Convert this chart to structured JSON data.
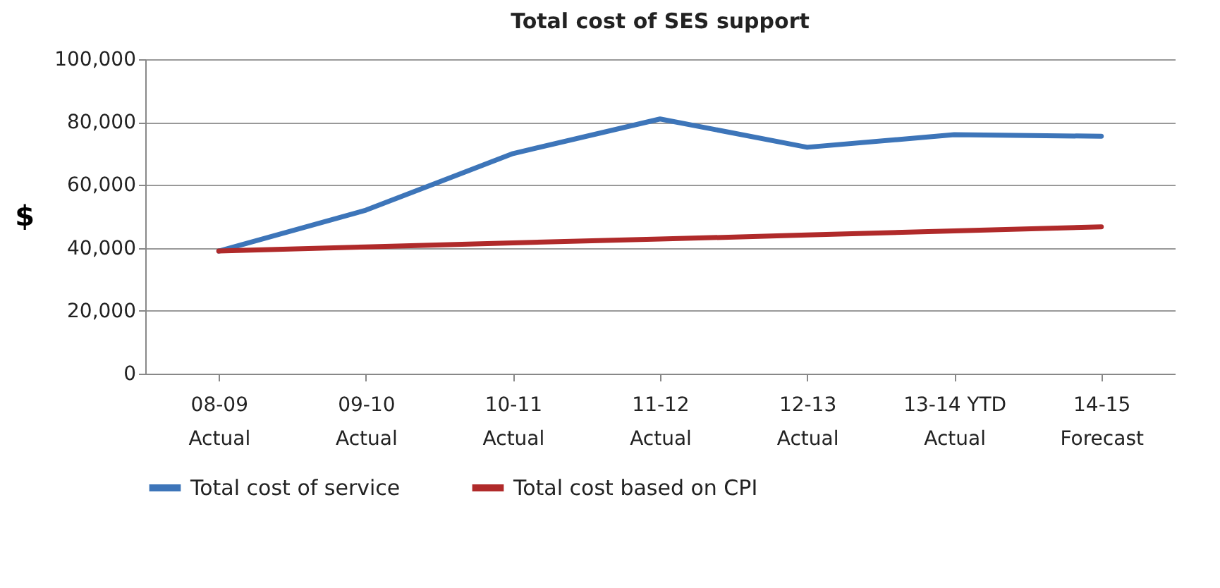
{
  "chart_data": {
    "type": "line",
    "title": "Total cost of SES support",
    "ylabel": "$",
    "categories": [
      "08-09 Actual",
      "09-10 Actual",
      "10-11 Actual",
      "11-12 Actual",
      "12-13 Actual",
      "13-14 YTD Actual",
      "14-15 Forecast"
    ],
    "series": [
      {
        "name": "Total cost of service",
        "color": "#3d75b9",
        "values": [
          39000,
          52000,
          70000,
          81000,
          72000,
          76000,
          75500
        ]
      },
      {
        "name": "Total cost based on CPI",
        "color": "#b02a2a",
        "values": [
          39000,
          40300,
          41600,
          42800,
          44100,
          45400,
          46700
        ]
      }
    ],
    "ylim": [
      0,
      100000
    ],
    "yticks": [
      0,
      {
        "value": 20000,
        "label": "20,000"
      },
      {
        "value": 40000,
        "label": "40,000"
      },
      {
        "value": 60000,
        "label": "60,000"
      },
      {
        "value": 80000,
        "label": "80,000"
      },
      {
        "value": 100000,
        "label": "100,000"
      }
    ],
    "grid": "y",
    "legend": "bottom",
    "marker": "none",
    "line_style": "solid"
  }
}
